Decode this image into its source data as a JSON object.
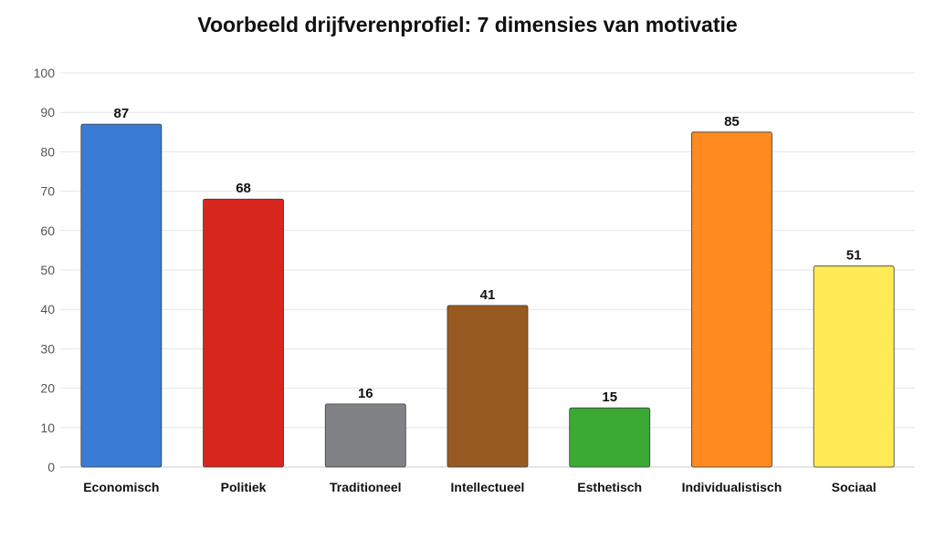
{
  "chart_data": {
    "type": "bar",
    "title": "Voorbeeld drijfverenprofiel: 7 dimensies van motivatie",
    "xlabel": "",
    "ylabel": "",
    "ylim": [
      0,
      100
    ],
    "yticks": [
      0,
      10,
      20,
      30,
      40,
      50,
      60,
      70,
      80,
      90,
      100
    ],
    "grid": true,
    "categories": [
      "Economisch",
      "Politiek",
      "Traditioneel",
      "Intellectueel",
      "Esthetisch",
      "Individualistisch",
      "Sociaal"
    ],
    "values": [
      87,
      68,
      16,
      41,
      15,
      85,
      51
    ],
    "colors": [
      "#3a7bd5",
      "#d7261e",
      "#808285",
      "#975a20",
      "#3aaa35",
      "#ff8a1f",
      "#ffeb55"
    ],
    "data_labels": [
      "87",
      "68",
      "16",
      "41",
      "15",
      "85",
      "51"
    ]
  }
}
